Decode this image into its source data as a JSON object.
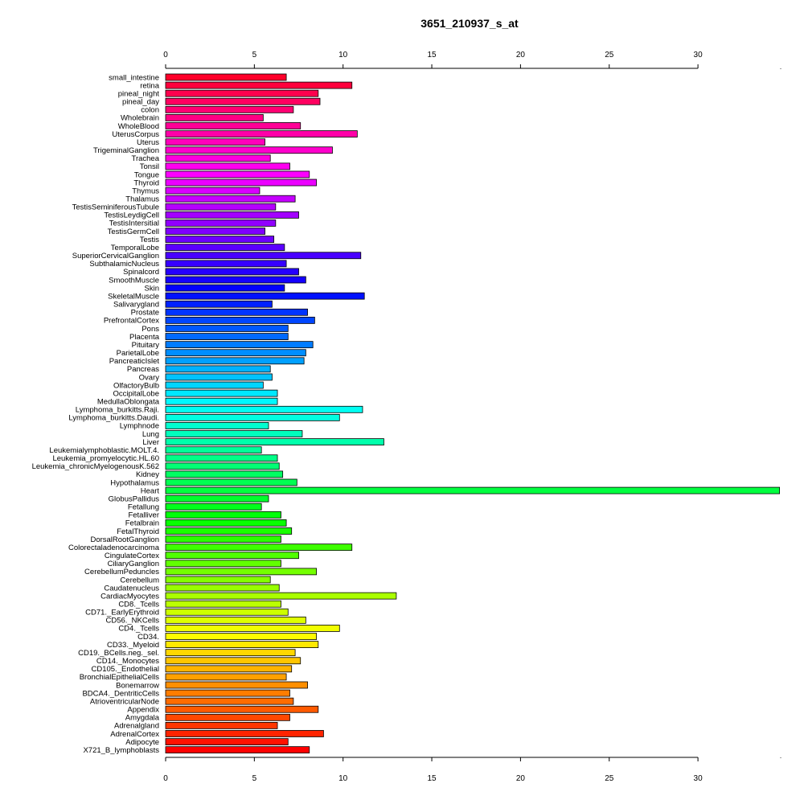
{
  "chart_data": {
    "type": "bar",
    "orientation": "horizontal",
    "title": "3651_210937_s_at",
    "xlabel": "",
    "ylabel": "",
    "xlim": [
      0,
      34.6
    ],
    "xticks": [
      0,
      5,
      10,
      15,
      20,
      25,
      30
    ],
    "axes": [
      "top",
      "bottom"
    ],
    "grid": false,
    "legend": "none",
    "bar_border_color": "#000000",
    "color_scheme": "rainbow",
    "categories": [
      "small_intestine",
      "retina",
      "pineal_night",
      "pineal_day",
      "colon",
      "Wholebrain",
      "WholeBlood",
      "UterusCorpus",
      "Uterus",
      "TrigeminalGanglion",
      "Trachea",
      "Tonsil",
      "Tongue",
      "Thyroid",
      "Thymus",
      "Thalamus",
      "TestisSeminiferousTubule",
      "TestisLeydigCell",
      "TestisIntersitial",
      "TestisGermCell",
      "Testis",
      "TemporalLobe",
      "SuperiorCervicalGanglion",
      "SubthalamicNucleus",
      "Spinalcord",
      "SmoothMuscle",
      "Skin",
      "SkeletalMuscle",
      "Salivarygland",
      "Prostate",
      "PrefrontalCortex",
      "Pons",
      "Placenta",
      "Pituitary",
      "ParietalLobe",
      "PancreaticIslet",
      "Pancreas",
      "Ovary",
      "OlfactoryBulb",
      "OccipitalLobe",
      "MedullaOblongata",
      "Lymphoma_burkitts.Raji.",
      "Lymphoma_burkitts.Daudi.",
      "Lymphnode",
      "Lung",
      "Liver",
      "Leukemialymphoblastic.MOLT.4.",
      "Leukemia_promyelocytic.HL.60",
      "Leukemia_chronicMyelogenousK.562",
      "Kidney",
      "Hypothalamus",
      "Heart",
      "GlobusPallidus",
      "Fetallung",
      "Fetalliver",
      "Fetalbrain",
      "FetalThyroid",
      "DorsalRootGanglion",
      "Colorectaladenocarcinoma",
      "CingulateCortex",
      "CiliaryGanglion",
      "CerebellumPeduncles",
      "Cerebellum",
      "Caudatenucleus",
      "CardiacMyocytes",
      "CD8._Tcells",
      "CD71._EarlyErythroid",
      "CD56._NKCells",
      "CD4._Tcells",
      "CD34.",
      "CD33._Myeloid",
      "CD19._BCells.neg._sel.",
      "CD14._Monocytes",
      "CD105._Endothelial",
      "BronchialEpithelialCells",
      "Bonemarrow",
      "BDCA4._DentriticCells",
      "AtrioventricularNode",
      "Appendix",
      "Amygdala",
      "Adrenalgland",
      "AdrenalCortex",
      "Adipocyte",
      "X721_B_lymphoblasts"
    ],
    "values": [
      6.8,
      10.5,
      8.6,
      8.7,
      7.2,
      5.5,
      7.6,
      10.8,
      5.6,
      9.4,
      5.9,
      7.0,
      8.1,
      8.5,
      5.3,
      7.3,
      6.2,
      7.5,
      6.2,
      5.6,
      6.1,
      6.7,
      11.0,
      6.8,
      7.5,
      7.9,
      6.7,
      11.2,
      6.0,
      8.0,
      8.4,
      6.9,
      6.9,
      8.3,
      7.9,
      7.8,
      5.9,
      6.0,
      5.5,
      6.3,
      6.3,
      11.1,
      9.8,
      5.8,
      7.7,
      12.3,
      5.4,
      6.3,
      6.4,
      6.6,
      7.4,
      34.6,
      5.8,
      5.4,
      6.5,
      6.8,
      7.1,
      6.5,
      10.5,
      7.5,
      6.5,
      8.5,
      5.9,
      6.4,
      13.0,
      6.5,
      6.9,
      7.9,
      9.8,
      8.5,
      8.6,
      7.3,
      7.6,
      7.1,
      6.8,
      8.0,
      7.0,
      7.2,
      8.6,
      7.0,
      6.3,
      8.9,
      6.9,
      8.1
    ]
  }
}
